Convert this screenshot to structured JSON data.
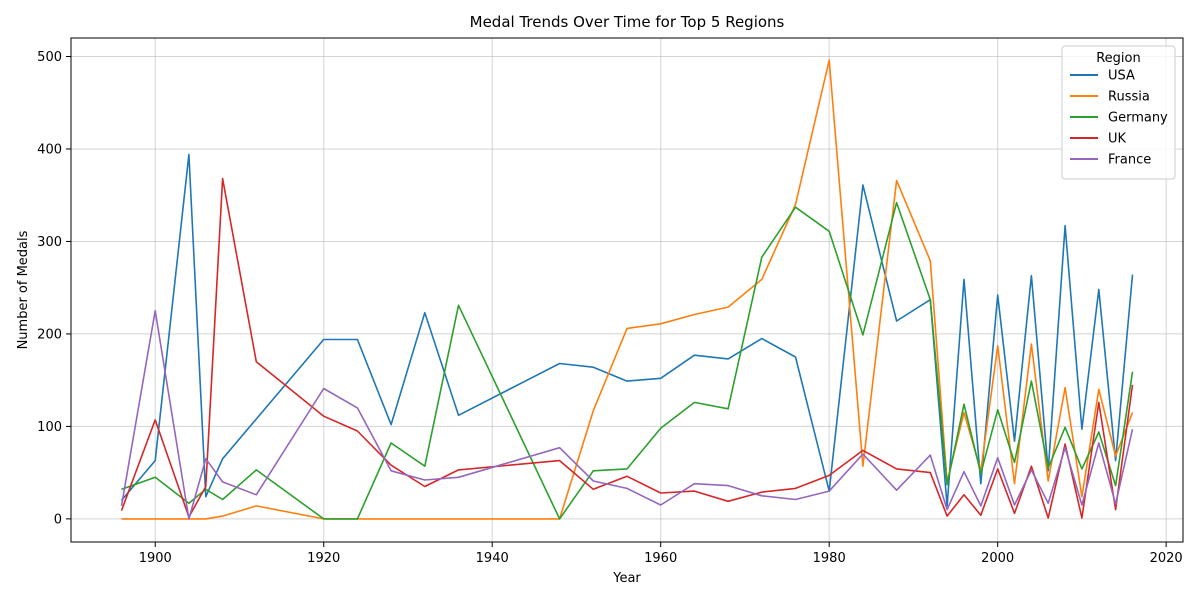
{
  "chart_data": {
    "type": "line",
    "title": "Medal Trends Over Time for Top 5 Regions",
    "xlabel": "Year",
    "ylabel": "Number of Medals",
    "xlim": [
      1890,
      2022
    ],
    "ylim": [
      -25,
      520
    ],
    "xticks": [
      1900,
      1920,
      1940,
      1960,
      1980,
      2000,
      2020
    ],
    "yticks": [
      0,
      100,
      200,
      300,
      400,
      500
    ],
    "grid": true,
    "legend": {
      "title": "Region",
      "placement": "top-right"
    },
    "x": [
      1896,
      1900,
      1904,
      1906,
      1908,
      1912,
      1920,
      1924,
      1928,
      1932,
      1936,
      1948,
      1952,
      1956,
      1960,
      1964,
      1968,
      1972,
      1976,
      1980,
      1984,
      1988,
      1992,
      1994,
      1996,
      1998,
      2000,
      2002,
      2004,
      2006,
      2008,
      2010,
      2012,
      2014,
      2016
    ],
    "series": [
      {
        "name": "USA",
        "color": "#1f77b4",
        "values": [
          20,
          63,
          394,
          24,
          65,
          108,
          194,
          194,
          102,
          223,
          112,
          168,
          164,
          149,
          152,
          177,
          173,
          195,
          175,
          30,
          361,
          214,
          237,
          14,
          259,
          38,
          242,
          84,
          263,
          52,
          317,
          97,
          248,
          63,
          264
        ]
      },
      {
        "name": "Russia",
        "color": "#ff7f0e",
        "values": [
          0,
          0,
          0,
          0,
          3,
          14,
          0,
          0,
          0,
          0,
          0,
          0,
          117,
          206,
          211,
          221,
          229,
          259,
          340,
          496,
          57,
          366,
          279,
          40,
          115,
          52,
          187,
          38,
          189,
          41,
          142,
          24,
          140,
          68,
          115
        ]
      },
      {
        "name": "Germany",
        "color": "#2ca02c",
        "values": [
          32,
          45,
          17,
          32,
          21,
          53,
          0,
          0,
          82,
          57,
          231,
          0,
          52,
          54,
          98,
          126,
          119,
          283,
          337,
          311,
          199,
          342,
          237,
          37,
          124,
          49,
          118,
          61,
          149,
          55,
          99,
          54,
          94,
          36,
          159
        ]
      },
      {
        "name": "UK",
        "color": "#d62728",
        "values": [
          9,
          107,
          2,
          35,
          368,
          170,
          111,
          95,
          58,
          35,
          53,
          63,
          32,
          46,
          28,
          30,
          19,
          29,
          33,
          47,
          74,
          54,
          50,
          3,
          26,
          4,
          54,
          6,
          57,
          1,
          81,
          1,
          126,
          10,
          145
        ]
      },
      {
        "name": "France",
        "color": "#9467bd",
        "values": [
          14,
          225,
          0,
          65,
          40,
          26,
          141,
          120,
          52,
          42,
          45,
          77,
          41,
          33,
          15,
          38,
          36,
          25,
          21,
          30,
          70,
          31,
          69,
          10,
          51,
          14,
          66,
          15,
          53,
          17,
          77,
          15,
          82,
          16,
          97
        ]
      }
    ]
  }
}
